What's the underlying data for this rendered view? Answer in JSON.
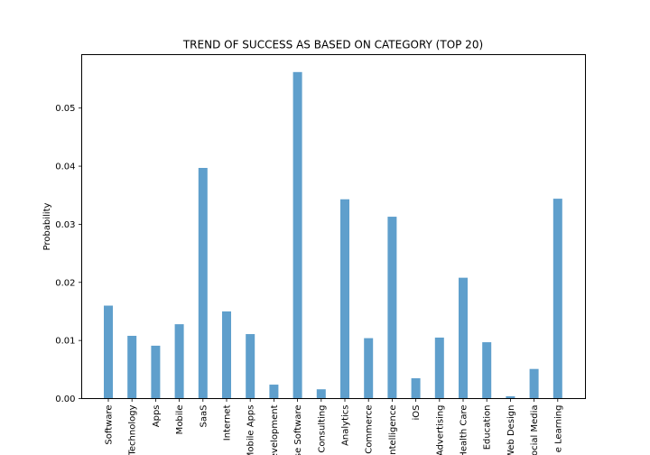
{
  "chart_data": {
    "type": "bar",
    "title": "TREND OF SUCCESS AS BASED ON CATEGORY (TOP 20)",
    "xlabel": "",
    "ylabel": "Probability",
    "ylim": [
      0,
      0.0592
    ],
    "yticks": [
      0.0,
      0.01,
      0.02,
      0.03,
      0.04,
      0.05
    ],
    "ytick_labels": [
      "0.00",
      "0.01",
      "0.02",
      "0.03",
      "0.04",
      "0.05"
    ],
    "grid": false,
    "bar_color": "#5f9fcc",
    "categories": [
      "Software",
      "Technology",
      "Apps",
      "Mobile",
      "SaaS",
      "Internet",
      "Mobile Apps",
      "Development",
      "Enterprise Software",
      "Consulting",
      "Analytics",
      "E-Commerce",
      "Artificial Intelligence",
      "iOS",
      "Advertising",
      "Health Care",
      "Education",
      "Web Design",
      "Social Media",
      "Machine Learning"
    ],
    "visible_category_labels": [
      "Software",
      "Technology",
      "Apps",
      "Mobile",
      "SaaS",
      "Internet",
      "Mobile Apps",
      "evelopment",
      "se Software",
      "Consulting",
      "Analytics",
      "Commerce",
      "ntelligence",
      "iOS",
      "Advertising",
      "Health Care",
      "Education",
      "Web Design",
      "ocial Media",
      "e Learning"
    ],
    "values": [
      0.016,
      0.0108,
      0.0091,
      0.0128,
      0.0397,
      0.015,
      0.0111,
      0.0024,
      0.0562,
      0.0016,
      0.0343,
      0.0104,
      0.0313,
      0.0035,
      0.0105,
      0.0208,
      0.0097,
      0.0004,
      0.0051,
      0.0344
    ]
  }
}
